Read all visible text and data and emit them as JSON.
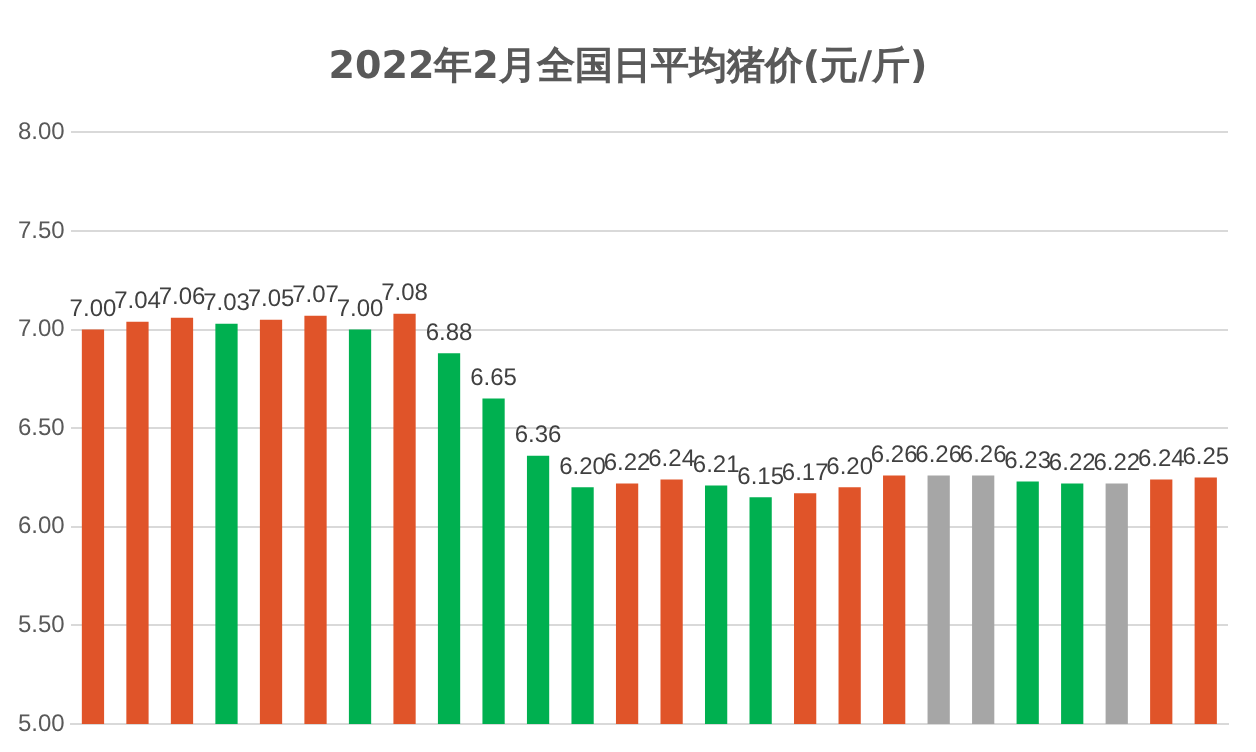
{
  "chart_data": {
    "type": "bar",
    "title": "2022年2月全国日平均猪价(元/斤)",
    "categories": [
      null,
      null,
      null,
      null,
      null,
      null,
      null,
      null,
      null,
      null,
      null,
      null,
      null,
      null,
      null,
      null,
      null,
      null,
      null,
      null,
      null,
      null,
      null,
      null,
      null,
      null
    ],
    "values": [
      7.0,
      7.04,
      7.06,
      7.03,
      7.05,
      7.07,
      7.0,
      7.08,
      6.88,
      6.65,
      6.36,
      6.2,
      6.22,
      6.24,
      6.21,
      6.15,
      6.17,
      6.2,
      6.26,
      6.26,
      6.26,
      6.23,
      6.22,
      6.22,
      6.24,
      6.25
    ],
    "value_labels": [
      "7.00",
      "7.04",
      "7.06",
      "7.03",
      "7.05",
      "7.07",
      "7.00",
      "7.08",
      "6.88",
      "6.65",
      "6.36",
      "6.20",
      "6.22",
      "6.24",
      "6.21",
      "6.15",
      "6.17",
      "6.20",
      "6.26",
      "6.26",
      "6.26",
      "6.23",
      "6.22",
      "6.22",
      "6.24",
      "6.25"
    ],
    "colors": [
      "#e05429",
      "#e05429",
      "#e05429",
      "#00b050",
      "#e05429",
      "#e05429",
      "#00b050",
      "#e05429",
      "#00b050",
      "#00b050",
      "#00b050",
      "#00b050",
      "#e05429",
      "#e05429",
      "#00b050",
      "#00b050",
      "#e05429",
      "#e05429",
      "#e05429",
      "#a6a6a6",
      "#a6a6a6",
      "#00b050",
      "#00b050",
      "#a6a6a6",
      "#e05429",
      "#e05429"
    ],
    "ylim": [
      5,
      8
    ],
    "yticks": [
      {
        "value": 5,
        "label": "5.00"
      },
      {
        "value": 5.5,
        "label": "5.50"
      },
      {
        "value": 6,
        "label": "6.00"
      },
      {
        "value": 6.5,
        "label": "6.50"
      },
      {
        "value": 7,
        "label": "7.00"
      },
      {
        "value": 7.5,
        "label": "7.50"
      },
      {
        "value": 8,
        "label": "8.00"
      }
    ],
    "grid": "y",
    "tick_labels": "y"
  }
}
